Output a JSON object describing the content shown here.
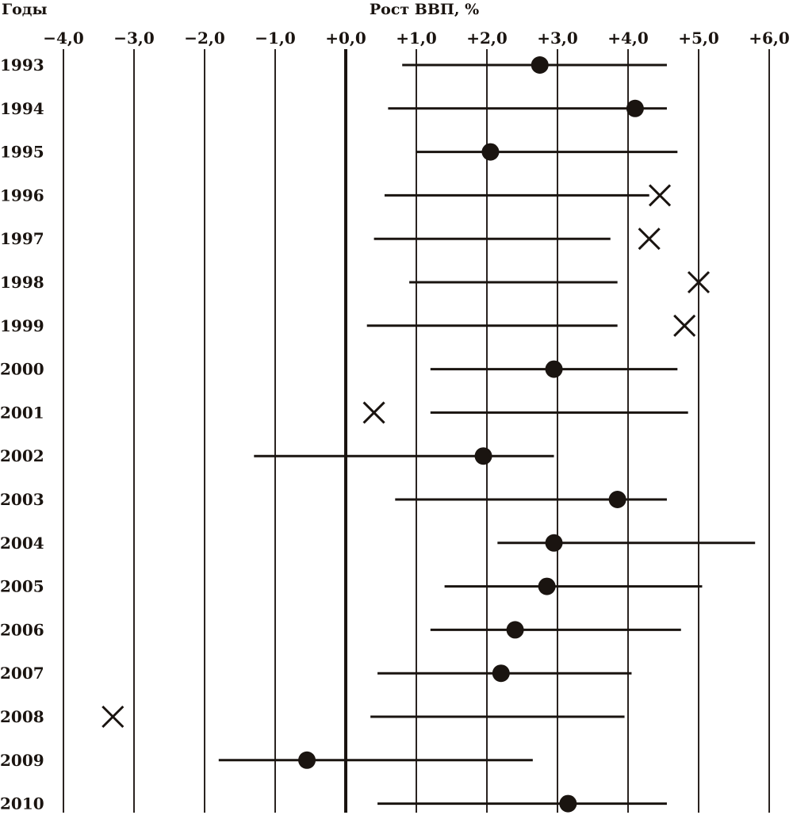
{
  "chart_data": {
    "type": "scatter",
    "title": "",
    "xlabel": "Рост ВВП, %",
    "ylabel": "Годы",
    "xlim": [
      -4.0,
      6.0
    ],
    "x_ticks": [
      -4,
      -3,
      -2,
      -1,
      0,
      1,
      2,
      3,
      4,
      5,
      6
    ],
    "x_tick_labels": [
      "−4,0",
      "−3,0",
      "−2,0",
      "−1,0",
      "+0,0",
      "+1,0",
      "+2,0",
      "+3,0",
      "+4,0",
      "+5,0",
      "+6,0"
    ],
    "grid": "vertical",
    "years": [
      "1993",
      "1994",
      "1995",
      "1996",
      "1997",
      "1998",
      "1999",
      "2000",
      "2001",
      "2002",
      "2003",
      "2004",
      "2005",
      "2006",
      "2007",
      "2008",
      "2009",
      "2010"
    ],
    "series": [
      {
        "name": "",
        "kind": "range",
        "low": [
          0.8,
          0.6,
          1.0,
          0.55,
          0.4,
          0.9,
          0.3,
          1.2,
          1.2,
          -1.3,
          0.7,
          2.15,
          1.4,
          1.2,
          0.45,
          0.35,
          -1.8,
          0.45
        ],
        "high": [
          4.55,
          4.55,
          4.7,
          4.3,
          3.75,
          3.85,
          3.85,
          4.7,
          4.85,
          2.95,
          4.55,
          5.8,
          5.05,
          4.75,
          4.05,
          3.95,
          2.65,
          4.55
        ]
      },
      {
        "name": "",
        "kind": "point",
        "marker": [
          "dot",
          "dot",
          "dot",
          "cross",
          "cross",
          "cross",
          "cross",
          "dot",
          "cross",
          "dot",
          "dot",
          "dot",
          "dot",
          "dot",
          "dot",
          "cross",
          "dot",
          "dot"
        ],
        "values": [
          2.75,
          4.1,
          2.05,
          4.45,
          4.3,
          5.0,
          4.8,
          2.95,
          0.4,
          1.95,
          3.85,
          2.95,
          2.85,
          2.4,
          2.2,
          -3.3,
          -0.55,
          3.15
        ]
      }
    ]
  }
}
